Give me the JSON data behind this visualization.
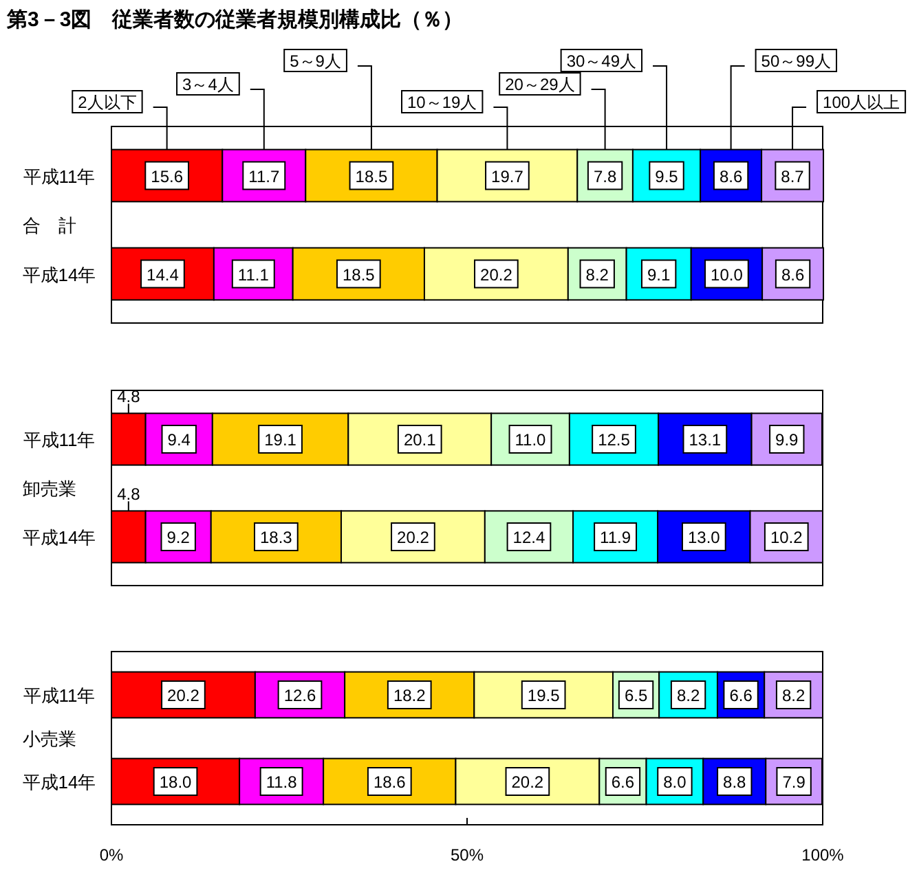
{
  "chart_data": [
    {
      "type": "bar",
      "title": "第3－3図　従業者数の従業者規模別構成比（％）",
      "ylabel": "合　計",
      "orientation": "horizontal",
      "stacked": true,
      "categories": [
        "平成11年",
        "平成14年"
      ],
      "xlim": [
        0,
        100
      ],
      "tick_labels": "y",
      "legend": "top",
      "series": [
        {
          "name": "2人以下",
          "color": "#ff0000",
          "values": [
            15.6,
            14.4
          ],
          "value_labels": [
            "15.6",
            "14.4"
          ]
        },
        {
          "name": "3～4人",
          "color": "#ff00ff",
          "values": [
            11.7,
            11.1
          ],
          "value_labels": [
            "11.7",
            "11.1"
          ]
        },
        {
          "name": "5～9人",
          "color": "#ffcc00",
          "values": [
            18.5,
            18.5
          ],
          "value_labels": [
            "18.5",
            "18.5"
          ]
        },
        {
          "name": "10～19人",
          "color": "#ffff99",
          "values": [
            19.7,
            20.2
          ],
          "value_labels": [
            "19.7",
            "20.2"
          ]
        },
        {
          "name": "20～29人",
          "color": "#ccffcc",
          "values": [
            7.8,
            8.2
          ],
          "value_labels": [
            "7.8",
            "8.2"
          ]
        },
        {
          "name": "30～49人",
          "color": "#00ffff",
          "values": [
            9.5,
            9.1
          ],
          "value_labels": [
            "9.5",
            "9.1"
          ]
        },
        {
          "name": "50～99人",
          "color": "#0000ff",
          "values": [
            8.6,
            10.0
          ],
          "value_labels": [
            "8.6",
            "10.0"
          ]
        },
        {
          "name": "100人以上",
          "color": "#cc99ff",
          "values": [
            8.7,
            8.6
          ],
          "value_labels": [
            "8.7",
            "8.6"
          ]
        }
      ]
    },
    {
      "type": "bar",
      "ylabel": "卸売業",
      "orientation": "horizontal",
      "stacked": true,
      "categories": [
        "平成11年",
        "平成14年"
      ],
      "xlim": [
        0,
        100
      ],
      "tick_labels": "y",
      "series": [
        {
          "color": "#ff0000",
          "values": [
            4.8,
            4.8
          ],
          "value_labels": [
            "4.8",
            "4.8"
          ]
        },
        {
          "color": "#ff00ff",
          "values": [
            9.4,
            9.2
          ],
          "value_labels": [
            "9.4",
            "9.2"
          ]
        },
        {
          "color": "#ffcc00",
          "values": [
            19.1,
            18.3
          ],
          "value_labels": [
            "19.1",
            "18.3"
          ]
        },
        {
          "color": "#ffff99",
          "values": [
            20.1,
            20.2
          ],
          "value_labels": [
            "20.1",
            "20.2"
          ]
        },
        {
          "color": "#ccffcc",
          "values": [
            11.0,
            12.4
          ],
          "value_labels": [
            "11.0",
            "12.4"
          ]
        },
        {
          "color": "#00ffff",
          "values": [
            12.5,
            11.9
          ],
          "value_labels": [
            "12.5",
            "11.9"
          ]
        },
        {
          "color": "#0000ff",
          "values": [
            13.1,
            13.0
          ],
          "value_labels": [
            "13.1",
            "13.0"
          ]
        },
        {
          "color": "#cc99ff",
          "values": [
            9.9,
            10.2
          ],
          "value_labels": [
            "9.9",
            "10.2"
          ]
        }
      ]
    },
    {
      "type": "bar",
      "ylabel": "小売業",
      "orientation": "horizontal",
      "stacked": true,
      "categories": [
        "平成11年",
        "平成14年"
      ],
      "xlim": [
        0,
        100
      ],
      "xticks": [
        {
          "value": 0,
          "label": "0%"
        },
        {
          "value": 50,
          "label": "50%"
        },
        {
          "value": 100,
          "label": "100%"
        }
      ],
      "series": [
        {
          "color": "#ff0000",
          "values": [
            20.2,
            18.0
          ],
          "value_labels": [
            "20.2",
            "18.0"
          ]
        },
        {
          "color": "#ff00ff",
          "values": [
            12.6,
            11.8
          ],
          "value_labels": [
            "12.6",
            "11.8"
          ]
        },
        {
          "color": "#ffcc00",
          "values": [
            18.2,
            18.6
          ],
          "value_labels": [
            "18.2",
            "18.6"
          ]
        },
        {
          "color": "#ffff99",
          "values": [
            19.5,
            20.2
          ],
          "value_labels": [
            "19.5",
            "20.2"
          ]
        },
        {
          "color": "#ccffcc",
          "values": [
            6.5,
            6.6
          ],
          "value_labels": [
            "6.5",
            "6.6"
          ]
        },
        {
          "color": "#00ffff",
          "values": [
            8.2,
            8.0
          ],
          "value_labels": [
            "8.2",
            "8.0"
          ]
        },
        {
          "color": "#0000ff",
          "values": [
            6.6,
            8.8
          ],
          "value_labels": [
            "6.6",
            "8.8"
          ]
        },
        {
          "color": "#cc99ff",
          "values": [
            8.2,
            7.9
          ],
          "value_labels": [
            "8.2",
            "7.9"
          ]
        }
      ]
    }
  ]
}
